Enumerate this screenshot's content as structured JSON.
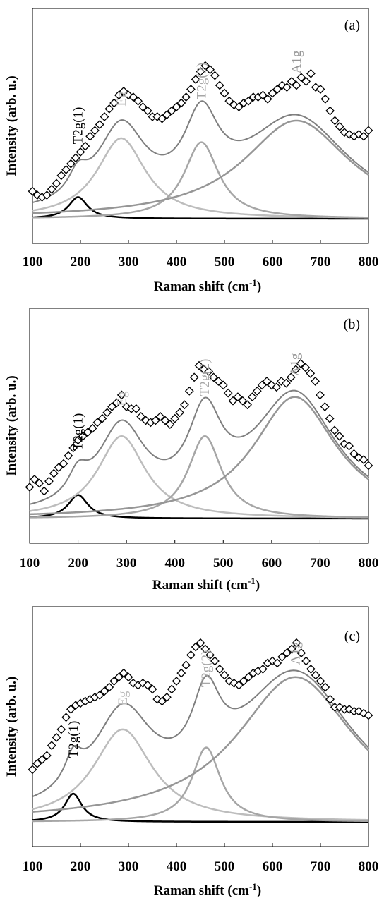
{
  "colors": {
    "data_points": "#000000",
    "T2g(1)": "#000000",
    "Eg": "#bdbdbd",
    "T2g(2)": "#a6a6a6",
    "A1g": "#969696",
    "envelope": "#7f7f7f"
  },
  "chart_data": [
    {
      "type": "scatter",
      "panel_label": "(a)",
      "xlabel": "Raman shift (cm",
      "xlabel_sup": "-1",
      "xlabel_close": ")",
      "ylabel": "Intensity (arb. u.)",
      "xlim": [
        100,
        800
      ],
      "xticks": [
        "100",
        "200",
        "300",
        "400",
        "500",
        "600",
        "700",
        "800"
      ],
      "y_ticks_shown": false,
      "grid": false,
      "annotations": [
        "T2g(1)",
        "Eg",
        "T2g(2)",
        "A1g"
      ],
      "peaks": [
        {
          "name": "T2g(1)",
          "center": 195,
          "height": 0.11,
          "hwhm": 24
        },
        {
          "name": "Eg",
          "center": 285,
          "height": 0.41,
          "hwhm": 62
        },
        {
          "name": "T2g(2)",
          "center": 452,
          "height": 0.39,
          "hwhm": 44
        },
        {
          "name": "A1g",
          "center": 650,
          "height": 0.5,
          "hwhm": 135
        }
      ],
      "series": [
        {
          "name": "data",
          "marker": "diamond",
          "x": [
            100,
            110,
            120,
            130,
            140,
            150,
            160,
            170,
            180,
            190,
            200,
            210,
            220,
            230,
            240,
            250,
            260,
            270,
            280,
            290,
            300,
            310,
            320,
            330,
            340,
            350,
            360,
            370,
            380,
            390,
            400,
            410,
            420,
            430,
            440,
            450,
            460,
            470,
            480,
            490,
            500,
            510,
            520,
            530,
            540,
            550,
            560,
            570,
            580,
            590,
            600,
            610,
            620,
            630,
            640,
            650,
            660,
            670,
            680,
            690,
            700,
            710,
            720,
            730,
            740,
            750,
            760,
            770,
            780,
            790,
            800
          ],
          "y": [
            0.14,
            0.12,
            0.11,
            0.12,
            0.15,
            0.18,
            0.22,
            0.25,
            0.28,
            0.31,
            0.34,
            0.37,
            0.42,
            0.45,
            0.48,
            0.52,
            0.56,
            0.59,
            0.63,
            0.65,
            0.63,
            0.62,
            0.6,
            0.57,
            0.55,
            0.52,
            0.52,
            0.51,
            0.53,
            0.55,
            0.57,
            0.59,
            0.62,
            0.66,
            0.71,
            0.75,
            0.78,
            0.76,
            0.73,
            0.68,
            0.64,
            0.6,
            0.58,
            0.57,
            0.59,
            0.6,
            0.62,
            0.62,
            0.63,
            0.61,
            0.64,
            0.66,
            0.68,
            0.67,
            0.7,
            0.68,
            0.72,
            0.7,
            0.74,
            0.67,
            0.66,
            0.61,
            0.55,
            0.5,
            0.47,
            0.44,
            0.43,
            0.42,
            0.43,
            0.42,
            0.45
          ]
        }
      ]
    },
    {
      "type": "scatter",
      "panel_label": "(b)",
      "xlabel": "Raman shift (cm",
      "xlabel_sup": "-1",
      "xlabel_close": ")",
      "ylabel": "Intensity (arb. u.)",
      "xlim": [
        100,
        800
      ],
      "xticks": [
        "100",
        "200",
        "300",
        "400",
        "500",
        "600",
        "700",
        "800"
      ],
      "y_ticks_shown": false,
      "grid": false,
      "annotations": [
        "T2g(1)",
        "Eg",
        "T2g(2)",
        "A1g"
      ],
      "peaks": [
        {
          "name": "T2g(1)",
          "center": 200,
          "height": 0.12,
          "hwhm": 25
        },
        {
          "name": "Eg",
          "center": 290,
          "height": 0.42,
          "hwhm": 60
        },
        {
          "name": "T2g(2)",
          "center": 462,
          "height": 0.42,
          "hwhm": 42
        },
        {
          "name": "A1g",
          "center": 648,
          "height": 0.62,
          "hwhm": 105
        }
      ],
      "series": [
        {
          "name": "data",
          "marker": "diamond",
          "x": [
            100,
            110,
            120,
            130,
            140,
            150,
            160,
            170,
            180,
            190,
            200,
            210,
            220,
            230,
            240,
            250,
            260,
            270,
            280,
            290,
            300,
            310,
            320,
            330,
            340,
            350,
            360,
            370,
            380,
            390,
            400,
            410,
            420,
            430,
            440,
            450,
            460,
            470,
            480,
            490,
            500,
            510,
            520,
            530,
            540,
            550,
            560,
            570,
            580,
            590,
            600,
            610,
            620,
            630,
            640,
            650,
            660,
            670,
            680,
            690,
            700,
            710,
            720,
            730,
            740,
            750,
            760,
            770,
            780,
            790,
            800
          ],
          "y": [
            0.16,
            0.2,
            0.18,
            0.14,
            0.19,
            0.23,
            0.26,
            0.28,
            0.32,
            0.36,
            0.4,
            0.42,
            0.44,
            0.46,
            0.49,
            0.51,
            0.54,
            0.57,
            0.59,
            0.63,
            0.57,
            0.56,
            0.56,
            0.52,
            0.5,
            0.49,
            0.5,
            0.52,
            0.5,
            0.48,
            0.51,
            0.54,
            0.58,
            0.65,
            0.72,
            0.78,
            0.76,
            0.75,
            0.72,
            0.7,
            0.68,
            0.64,
            0.6,
            0.62,
            0.6,
            0.58,
            0.62,
            0.65,
            0.68,
            0.7,
            0.68,
            0.67,
            0.7,
            0.69,
            0.72,
            0.76,
            0.79,
            0.77,
            0.74,
            0.7,
            0.63,
            0.57,
            0.51,
            0.45,
            0.42,
            0.38,
            0.37,
            0.33,
            0.31,
            0.3,
            0.27
          ]
        }
      ]
    },
    {
      "type": "scatter",
      "panel_label": "(c)",
      "xlabel": "Raman shift (cm",
      "xlabel_sup": "-1",
      "xlabel_close": ")",
      "ylabel": "Intensity (arb. u.)",
      "xlim": [
        100,
        800
      ],
      "xticks": [
        "100",
        "200",
        "300",
        "400",
        "500",
        "600",
        "700",
        "800"
      ],
      "y_ticks_shown": false,
      "grid": false,
      "annotations": [
        "T2g(1)",
        "Eg",
        "T2g(2)",
        "A1g"
      ],
      "peaks": [
        {
          "name": "T2g(1)",
          "center": 185,
          "height": 0.14,
          "hwhm": 22
        },
        {
          "name": "Eg",
          "center": 288,
          "height": 0.46,
          "hwhm": 75
        },
        {
          "name": "T2g(2)",
          "center": 462,
          "height": 0.37,
          "hwhm": 36
        },
        {
          "name": "A1g",
          "center": 648,
          "height": 0.72,
          "hwhm": 150
        }
      ],
      "series": [
        {
          "name": "data",
          "marker": "diamond",
          "x": [
            100,
            110,
            120,
            130,
            140,
            150,
            160,
            170,
            180,
            190,
            200,
            210,
            220,
            230,
            240,
            250,
            260,
            270,
            280,
            290,
            300,
            310,
            320,
            330,
            340,
            350,
            360,
            370,
            380,
            390,
            400,
            410,
            420,
            430,
            440,
            450,
            460,
            470,
            480,
            490,
            500,
            510,
            520,
            530,
            540,
            550,
            560,
            570,
            580,
            590,
            600,
            610,
            620,
            630,
            640,
            650,
            660,
            670,
            680,
            690,
            700,
            710,
            720,
            730,
            740,
            750,
            760,
            770,
            780,
            790,
            800
          ],
          "y": [
            0.26,
            0.29,
            0.31,
            0.33,
            0.38,
            0.42,
            0.46,
            0.52,
            0.56,
            0.58,
            0.59,
            0.6,
            0.61,
            0.62,
            0.63,
            0.65,
            0.67,
            0.7,
            0.72,
            0.74,
            0.72,
            0.69,
            0.68,
            0.69,
            0.68,
            0.66,
            0.61,
            0.6,
            0.62,
            0.66,
            0.7,
            0.74,
            0.78,
            0.83,
            0.87,
            0.89,
            0.86,
            0.83,
            0.8,
            0.76,
            0.73,
            0.7,
            0.69,
            0.68,
            0.7,
            0.72,
            0.74,
            0.75,
            0.76,
            0.79,
            0.8,
            0.79,
            0.82,
            0.84,
            0.86,
            0.89,
            0.84,
            0.8,
            0.76,
            0.73,
            0.7,
            0.67,
            0.61,
            0.57,
            0.57,
            0.56,
            0.56,
            0.55,
            0.55,
            0.54,
            0.53
          ]
        }
      ]
    }
  ]
}
